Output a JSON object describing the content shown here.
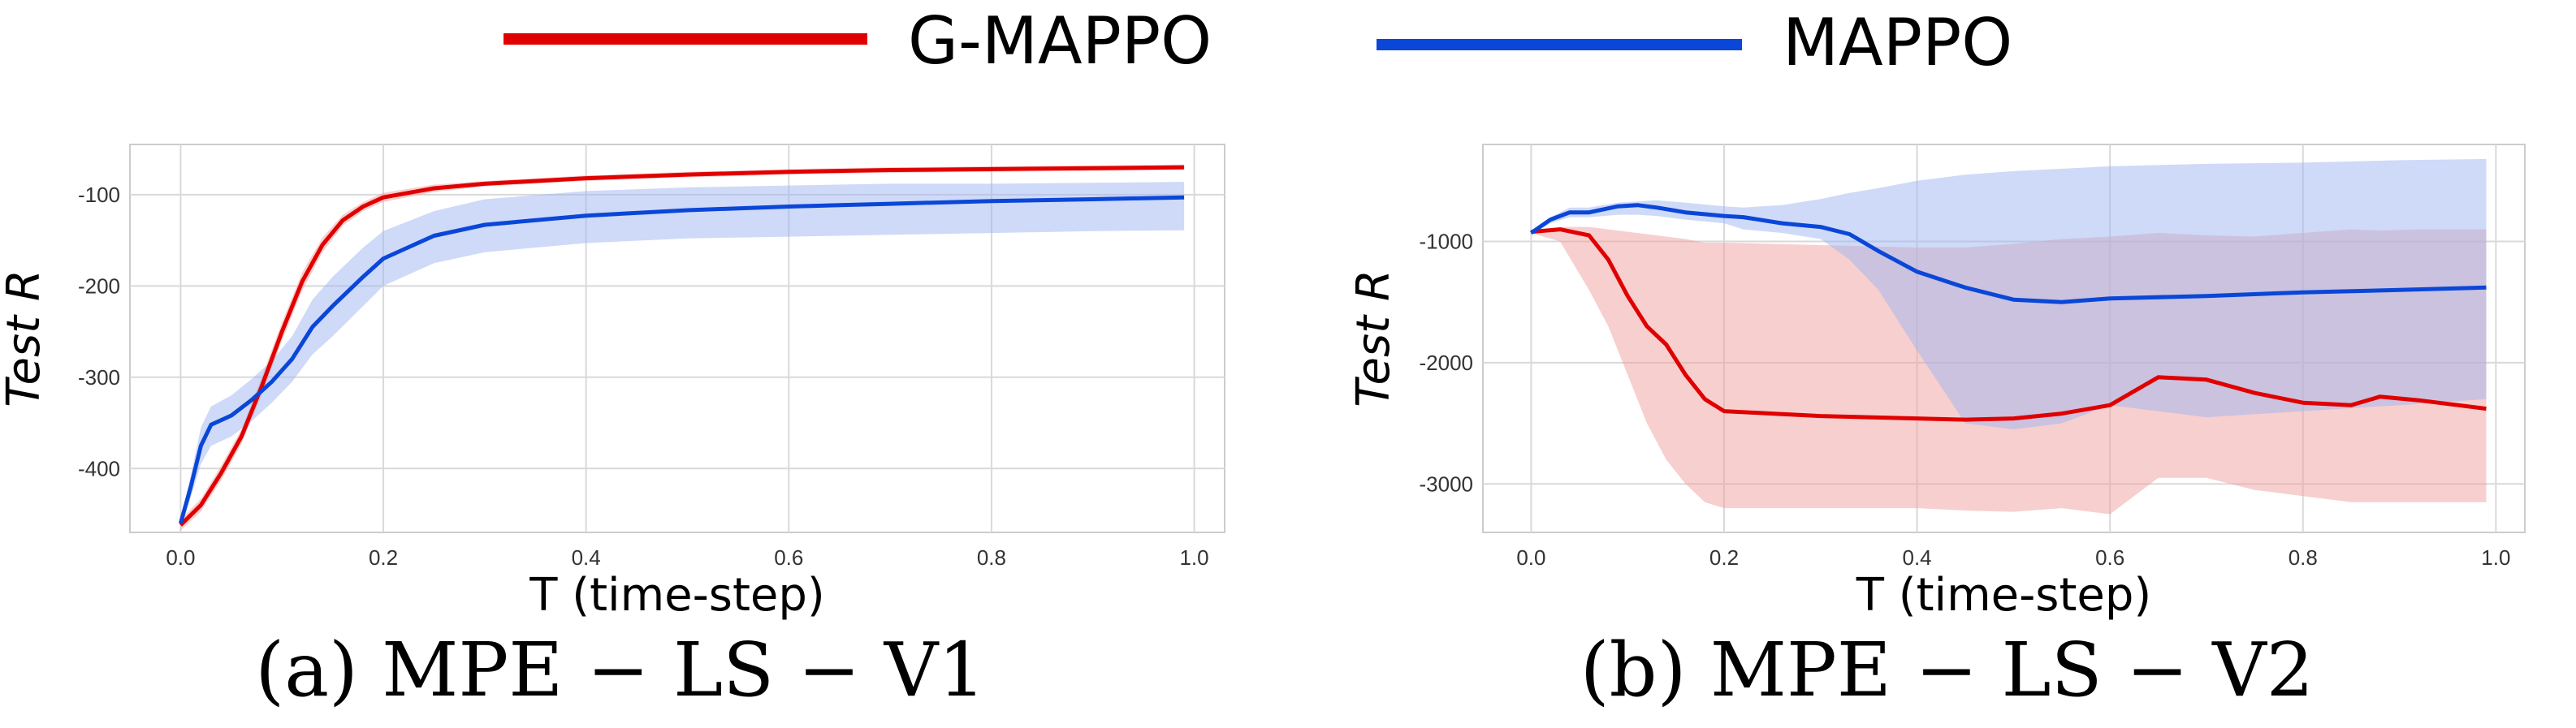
{
  "legend": [
    {
      "label": "G-MAPPO",
      "color": "#e00000"
    },
    {
      "label": "MAPPO",
      "color": "#0a46d8"
    }
  ],
  "chart_data": [
    {
      "type": "line",
      "caption": "(a) MPE − LS − V1",
      "xlabel": "T (time-step)",
      "ylabel": "Test R",
      "xlim": [
        -0.05,
        1.03
      ],
      "ylim": [
        -470,
        -45
      ],
      "xticks": [
        0.0,
        0.2,
        0.4,
        0.6,
        0.8,
        1.0
      ],
      "xtick_labels": [
        "0.0",
        "0.2",
        "0.4",
        "0.6",
        "0.8",
        "1.0"
      ],
      "yticks": [
        -100,
        -200,
        -300,
        -400
      ],
      "ytick_labels": [
        "-100",
        "-200",
        "-300",
        "-400"
      ],
      "grid": true,
      "legend_placement": "top (shared)",
      "series": [
        {
          "name": "G-MAPPO",
          "color": "#e00000",
          "band_color": "#f0a0a0",
          "x": [
            0,
            0.02,
            0.04,
            0.06,
            0.08,
            0.1,
            0.12,
            0.14,
            0.16,
            0.18,
            0.2,
            0.25,
            0.3,
            0.4,
            0.5,
            0.6,
            0.7,
            0.8,
            0.9,
            0.99
          ],
          "y": [
            -462,
            -440,
            -405,
            -365,
            -310,
            -250,
            -195,
            -155,
            -128,
            -113,
            -103,
            -93,
            -88,
            -82,
            -78,
            -75,
            -73,
            -72,
            -71,
            -70
          ],
          "lower": [
            -468,
            -447,
            -413,
            -373,
            -320,
            -260,
            -205,
            -163,
            -134,
            -118,
            -108,
            -97,
            -91,
            -85,
            -81,
            -78,
            -76,
            -75,
            -74,
            -73
          ],
          "upper": [
            -456,
            -433,
            -397,
            -357,
            -300,
            -240,
            -185,
            -147,
            -122,
            -108,
            -98,
            -89,
            -85,
            -79,
            -75,
            -72,
            -70,
            -69,
            -68,
            -67
          ]
        },
        {
          "name": "MAPPO",
          "color": "#0a46d8",
          "band_color": "#9db5f0",
          "x": [
            0,
            0.01,
            0.02,
            0.03,
            0.05,
            0.07,
            0.09,
            0.11,
            0.13,
            0.15,
            0.18,
            0.2,
            0.25,
            0.3,
            0.4,
            0.5,
            0.6,
            0.7,
            0.8,
            0.9,
            0.99
          ],
          "y": [
            -460,
            -420,
            -375,
            -352,
            -342,
            -325,
            -305,
            -280,
            -245,
            -222,
            -190,
            -170,
            -145,
            -133,
            -123,
            -117,
            -113,
            -110,
            -107,
            -105,
            -103
          ],
          "lower": [
            -465,
            -432,
            -395,
            -375,
            -365,
            -348,
            -328,
            -305,
            -275,
            -255,
            -222,
            -200,
            -175,
            -163,
            -153,
            -148,
            -146,
            -144,
            -142,
            -140,
            -139
          ],
          "upper": [
            -455,
            -408,
            -355,
            -332,
            -320,
            -302,
            -282,
            -255,
            -215,
            -190,
            -158,
            -140,
            -118,
            -105,
            -96,
            -92,
            -90,
            -88,
            -88,
            -87,
            -86
          ]
        }
      ]
    },
    {
      "type": "line",
      "caption": "(b) MPE − LS − V2",
      "xlabel": "T (time-step)",
      "ylabel": "Test R",
      "xlim": [
        -0.05,
        1.03
      ],
      "ylim": [
        -3400,
        -200
      ],
      "xticks": [
        0.0,
        0.2,
        0.4,
        0.6,
        0.8,
        1.0
      ],
      "xtick_labels": [
        "0.0",
        "0.2",
        "0.4",
        "0.6",
        "0.8",
        "1.0"
      ],
      "yticks": [
        -1000,
        -2000,
        -3000
      ],
      "ytick_labels": [
        "-1000",
        "-2000",
        "-3000"
      ],
      "grid": true,
      "legend_placement": "top (shared)",
      "series": [
        {
          "name": "G-MAPPO",
          "color": "#e00000",
          "band_color": "#f0a0a0",
          "x": [
            0,
            0.03,
            0.06,
            0.08,
            0.1,
            0.12,
            0.14,
            0.16,
            0.18,
            0.2,
            0.25,
            0.3,
            0.35,
            0.4,
            0.45,
            0.5,
            0.55,
            0.6,
            0.65,
            0.7,
            0.75,
            0.8,
            0.85,
            0.88,
            0.92,
            0.99
          ],
          "y": [
            -920,
            -900,
            -950,
            -1150,
            -1450,
            -1700,
            -1850,
            -2100,
            -2300,
            -2400,
            -2420,
            -2440,
            -2450,
            -2460,
            -2470,
            -2460,
            -2420,
            -2350,
            -2120,
            -2140,
            -2250,
            -2330,
            -2350,
            -2280,
            -2310,
            -2380
          ],
          "lower": [
            -930,
            -1000,
            -1400,
            -1700,
            -2100,
            -2500,
            -2800,
            -3000,
            -3150,
            -3200,
            -3200,
            -3200,
            -3200,
            -3200,
            -3220,
            -3230,
            -3200,
            -3250,
            -2950,
            -2950,
            -3050,
            -3100,
            -3150,
            -3150,
            -3150,
            -3150
          ],
          "upper": [
            -910,
            -880,
            -880,
            -900,
            -920,
            -940,
            -960,
            -980,
            -1010,
            -1010,
            -1020,
            -1030,
            -1040,
            -1050,
            -1050,
            -1020,
            -980,
            -960,
            -930,
            -950,
            -960,
            -930,
            -900,
            -910,
            -900,
            -900
          ]
        },
        {
          "name": "MAPPO",
          "color": "#0a46d8",
          "band_color": "#9db5f0",
          "x": [
            0,
            0.02,
            0.04,
            0.06,
            0.09,
            0.11,
            0.13,
            0.16,
            0.2,
            0.22,
            0.26,
            0.3,
            0.33,
            0.36,
            0.4,
            0.45,
            0.5,
            0.55,
            0.6,
            0.7,
            0.8,
            0.9,
            0.99
          ],
          "y": [
            -930,
            -820,
            -760,
            -760,
            -710,
            -700,
            -720,
            -760,
            -790,
            -800,
            -850,
            -880,
            -940,
            -1080,
            -1250,
            -1380,
            -1480,
            -1500,
            -1470,
            -1450,
            -1420,
            -1400,
            -1380
          ],
          "lower": [
            -940,
            -850,
            -800,
            -800,
            -780,
            -780,
            -790,
            -820,
            -850,
            -900,
            -930,
            -980,
            -1150,
            -1400,
            -1900,
            -2500,
            -2550,
            -2500,
            -2350,
            -2450,
            -2400,
            -2350,
            -2300
          ],
          "upper": [
            -920,
            -800,
            -720,
            -720,
            -680,
            -670,
            -660,
            -680,
            -710,
            -720,
            -700,
            -650,
            -600,
            -560,
            -500,
            -450,
            -420,
            -400,
            -380,
            -360,
            -350,
            -330,
            -320
          ]
        }
      ]
    }
  ]
}
